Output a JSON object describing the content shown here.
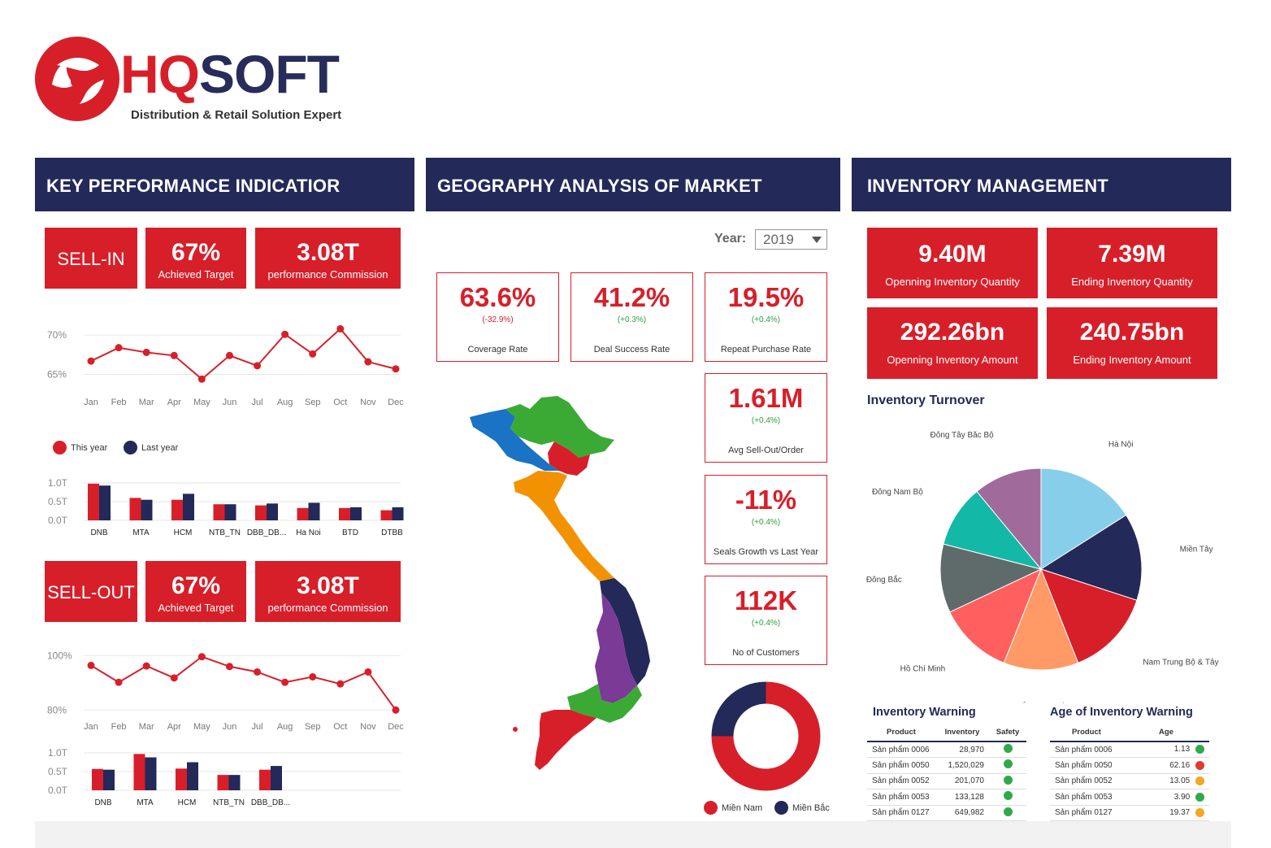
{
  "brand": {
    "name_hq": "HQ",
    "name_soft": "SOFT",
    "tagline": "Distribution & Retail Solution Expert",
    "colors": {
      "red": "#d71f2a",
      "navy": "#232958"
    }
  },
  "kpi": {
    "title": "KEY PERFORMANCE INDICATIOR",
    "sell_in": {
      "label": "SELL-IN",
      "achieved": "67%",
      "achieved_label": "Achieved Target",
      "commission": "3.08T",
      "commission_label": "performance Commission"
    },
    "sell_out": {
      "label": "SELL-OUT",
      "achieved": "67%",
      "achieved_label": "Achieved Target",
      "commission": "3.08T",
      "commission_label": "performance Commission"
    },
    "legend": {
      "this_year": "This year",
      "last_year": "Last year"
    }
  },
  "geo": {
    "title": "GEOGRAPHY ANALYSIS OF MARKET",
    "year_label": "Year:",
    "year_value": "2019",
    "cards": [
      {
        "value": "63.6%",
        "change": "(-32.9%)",
        "label": "Coverage Rate",
        "trend": "neg"
      },
      {
        "value": "41.2%",
        "change": "(+0.3%)",
        "label": "Deal Success Rate",
        "trend": "pos"
      },
      {
        "value": "19.5%",
        "change": "(+0.4%)",
        "label": "Repeat Purchase Rate",
        "trend": "pos"
      },
      {
        "value": "1.61M",
        "change": "(+0.4%)",
        "label": "Avg Sell-Out/Order",
        "trend": "pos"
      },
      {
        "value": "-11%",
        "change": "(+0.4%)",
        "label": "Seals Growth vs Last Year",
        "trend": "pos"
      },
      {
        "value": "112K",
        "change": "(+0.4%)",
        "label": "No of Customers",
        "trend": "pos"
      }
    ],
    "donut_legend": {
      "south": "Miền Nam",
      "north": "Miền Bắc"
    }
  },
  "inventory": {
    "title": "INVENTORY MANAGEMENT",
    "boxes": [
      {
        "value": "9.40M",
        "label": "Openning Inventory Quantity"
      },
      {
        "value": "7.39M",
        "label": "Ending Inventory Quantity"
      },
      {
        "value": "292.26bn",
        "label": "Openning Inventory Amount"
      },
      {
        "value": "240.75bn",
        "label": "Ending Inventory Amount"
      }
    ],
    "turnover_title": "Inventory Turnover",
    "warning_title": "Inventory Warning",
    "age_title": "Age of Inventory Warning",
    "warning_headers": [
      "Product",
      "Inventory",
      "Safety"
    ],
    "age_headers": [
      "Product",
      "Age"
    ],
    "warning_rows": [
      {
        "product": "Sản phẩm 0006",
        "inventory": "28,970",
        "color": "#2faa4a"
      },
      {
        "product": "Sản phẩm 0050",
        "inventory": "1,520,029",
        "color": "#2faa4a"
      },
      {
        "product": "Sản phẩm 0052",
        "inventory": "201,070",
        "color": "#2faa4a"
      },
      {
        "product": "Sản phẩm 0053",
        "inventory": "133,128",
        "color": "#2faa4a"
      },
      {
        "product": "Sản phẩm 0127",
        "inventory": "649,982",
        "color": "#2faa4a"
      }
    ],
    "age_rows": [
      {
        "product": "Sản phẩm 0006",
        "age": "1.13",
        "color": "#2faa4a"
      },
      {
        "product": "Sản phẩm 0050",
        "age": "62.16",
        "color": "#e23a2e"
      },
      {
        "product": "Sản phẩm 0052",
        "age": "13.05",
        "color": "#f5a623"
      },
      {
        "product": "Sản phẩm 0053",
        "age": "3.90",
        "color": "#2faa4a"
      },
      {
        "product": "Sản phẩm 0127",
        "age": "19.37",
        "color": "#f5a623"
      }
    ]
  },
  "chart_data": [
    {
      "type": "line",
      "name": "sell-in-trend",
      "categories": [
        "Jan",
        "Feb",
        "Mar",
        "Apr",
        "May",
        "Jun",
        "Jul",
        "Aug",
        "Sep",
        "Oct",
        "Nov",
        "Dec"
      ],
      "series": [
        {
          "name": "This year",
          "values": [
            66.7,
            68.4,
            67.8,
            67.4,
            64.4,
            67.4,
            66.1,
            70.1,
            67.6,
            70.8,
            66.6,
            65.7
          ]
        }
      ],
      "yticks": [
        "70%",
        "65%"
      ],
      "ylim": [
        63.5,
        72.5
      ],
      "color": "#d71f2a"
    },
    {
      "type": "bar",
      "name": "sell-in-region",
      "categories": [
        "DNB",
        "MTA",
        "HCM",
        "NTB_TN",
        "DBB_DB...",
        "Ha Noi",
        "BTD",
        "DTBB"
      ],
      "series": [
        {
          "name": "This year",
          "values": [
            0.98,
            0.6,
            0.55,
            0.43,
            0.4,
            0.33,
            0.33,
            0.27
          ]
        },
        {
          "name": "Last year",
          "values": [
            0.93,
            0.55,
            0.71,
            0.43,
            0.45,
            0.47,
            0.35,
            0.35
          ]
        }
      ],
      "yticks": [
        "1.0T",
        "0.5T",
        "0.0T"
      ],
      "ylim": [
        0,
        1.0
      ]
    },
    {
      "type": "line",
      "name": "sell-out-trend",
      "categories": [
        "Jan",
        "Feb",
        "Mar",
        "Apr",
        "May",
        "Jun",
        "Jul",
        "Aug",
        "Sep",
        "Oct",
        "Nov",
        "Dec"
      ],
      "series": [
        {
          "name": "This year",
          "values": [
            96.4,
            90.2,
            96.2,
            91.8,
            99.6,
            96.0,
            94.0,
            90.2,
            92.2,
            89.6,
            94.0,
            80.0
          ]
        }
      ],
      "yticks": [
        "100%",
        "80%"
      ],
      "ylim": [
        78,
        104
      ],
      "color": "#d71f2a"
    },
    {
      "type": "bar",
      "name": "sell-out-region",
      "categories": [
        "DNB",
        "MTA",
        "HCM",
        "NTB_TN",
        "DBB_DB..."
      ],
      "series": [
        {
          "name": "This year",
          "values": [
            0.57,
            0.97,
            0.58,
            0.41,
            0.55
          ]
        },
        {
          "name": "Last year",
          "values": [
            0.55,
            0.88,
            0.75,
            0.41,
            0.65
          ]
        }
      ],
      "yticks": [
        "1.0T",
        "0.5T",
        "0.0T"
      ],
      "ylim": [
        0,
        1.0
      ]
    },
    {
      "type": "pie",
      "name": "market-donut",
      "labels": [
        "Miền Nam",
        "Miền Bắc"
      ],
      "values": [
        75,
        25
      ],
      "colors": [
        "#d71f2a",
        "#232958"
      ]
    },
    {
      "type": "pie",
      "name": "inventory-turnover",
      "labels": [
        "Hà Nội",
        "Miền Tây",
        "Nam Trung Bộ & Tây",
        "Bắc Trung Bộ",
        "Hồ Chí Minh",
        "Đông Bắc",
        "Đông Nam Bộ",
        "Đông Tây Bắc Bộ"
      ],
      "values": [
        16,
        14,
        14,
        12,
        12,
        11,
        10,
        11
      ],
      "colors": [
        "#87ceeb",
        "#232958",
        "#d71f2a",
        "#ff9966",
        "#ff5f5f",
        "#5f6b6b",
        "#14b8a6",
        "#a06b9a"
      ]
    }
  ]
}
